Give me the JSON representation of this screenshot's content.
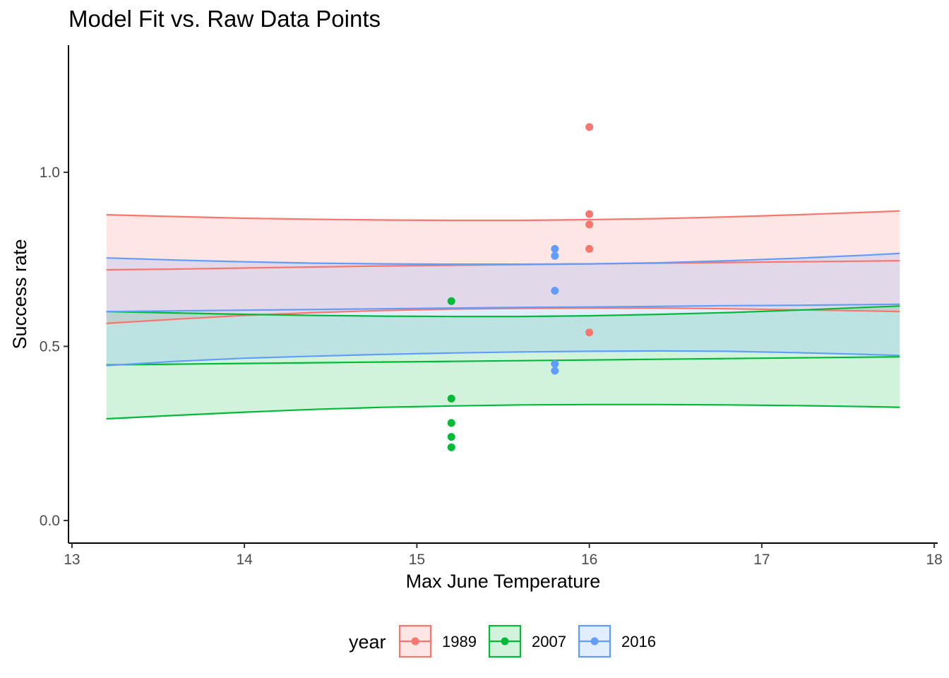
{
  "chart_data": {
    "type": "line",
    "title": "Model Fit vs. Raw Data Points",
    "xlabel": "Max June Temperature",
    "ylabel": "Success rate",
    "xlim": [
      12.98,
      18.02
    ],
    "ylim": [
      -0.065,
      1.365
    ],
    "x_ticks": [
      "13",
      "14",
      "15",
      "16",
      "17",
      "18"
    ],
    "y_ticks": [
      "0.0",
      "0.5",
      "1.0"
    ],
    "x": [
      13.2,
      13.6,
      14.0,
      14.4,
      14.8,
      15.2,
      15.6,
      16.0,
      16.4,
      16.8,
      17.2,
      17.6,
      17.8
    ],
    "legend": {
      "title": "year",
      "position": "bottom"
    },
    "series": [
      {
        "name": "1989",
        "color": "#F8766D",
        "fit": [
          0.72,
          0.722,
          0.725,
          0.728,
          0.731,
          0.733,
          0.735,
          0.737,
          0.739,
          0.741,
          0.743,
          0.745,
          0.746
        ],
        "upper": [
          0.878,
          0.873,
          0.868,
          0.865,
          0.863,
          0.862,
          0.862,
          0.864,
          0.867,
          0.872,
          0.878,
          0.885,
          0.889
        ],
        "lower": [
          0.566,
          0.578,
          0.589,
          0.597,
          0.603,
          0.607,
          0.609,
          0.61,
          0.61,
          0.608,
          0.605,
          0.602,
          0.6
        ],
        "points": [
          [
            16.0,
            1.13
          ],
          [
            16.0,
            0.88
          ],
          [
            16.0,
            0.85
          ],
          [
            16.0,
            0.78
          ],
          [
            16.0,
            0.54
          ]
        ]
      },
      {
        "name": "2007",
        "color": "#00BA38",
        "fit": [
          0.447,
          0.449,
          0.451,
          0.453,
          0.455,
          0.457,
          0.459,
          0.461,
          0.463,
          0.465,
          0.467,
          0.469,
          0.47
        ],
        "upper": [
          0.6,
          0.596,
          0.592,
          0.589,
          0.587,
          0.586,
          0.586,
          0.588,
          0.592,
          0.597,
          0.604,
          0.612,
          0.616
        ],
        "lower": [
          0.292,
          0.302,
          0.311,
          0.319,
          0.325,
          0.329,
          0.332,
          0.333,
          0.333,
          0.332,
          0.33,
          0.327,
          0.325
        ],
        "points": [
          [
            15.2,
            0.63
          ],
          [
            15.2,
            0.35
          ],
          [
            15.2,
            0.28
          ],
          [
            15.2,
            0.24
          ],
          [
            15.2,
            0.21
          ]
        ]
      },
      {
        "name": "2016",
        "color": "#619CFF",
        "fit": [
          0.6,
          0.602,
          0.604,
          0.606,
          0.608,
          0.61,
          0.612,
          0.613,
          0.615,
          0.617,
          0.618,
          0.62,
          0.621
        ],
        "upper": [
          0.754,
          0.748,
          0.743,
          0.739,
          0.737,
          0.736,
          0.736,
          0.737,
          0.74,
          0.746,
          0.753,
          0.762,
          0.767
        ],
        "lower": [
          0.445,
          0.457,
          0.466,
          0.472,
          0.477,
          0.481,
          0.484,
          0.486,
          0.487,
          0.486,
          0.482,
          0.477,
          0.474
        ],
        "points": [
          [
            15.8,
            0.78
          ],
          [
            15.8,
            0.76
          ],
          [
            15.8,
            0.66
          ],
          [
            15.8,
            0.45
          ],
          [
            15.8,
            0.43
          ]
        ]
      }
    ]
  }
}
